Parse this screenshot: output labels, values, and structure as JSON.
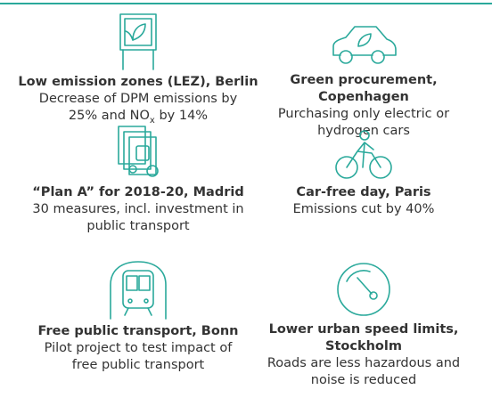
{
  "items": [
    {
      "title": "Low emission zones (LEZ), Berlin",
      "description": [
        {
          "text": "Decrease of DPM emissions by 25%  and NO"
        },
        {
          "text": "x",
          "subscript": true
        },
        {
          "text": " by 14%"
        }
      ]
    },
    {
      "title": "Green procurement, Copenhagen",
      "description": [
        {
          "text": "Purchasing only electric or hydrogen cars"
        }
      ]
    },
    {
      "title": "“Plan A” for 2018-20, Madrid",
      "description": [
        {
          "text": "30 measures, incl. investment in public transport"
        }
      ]
    },
    {
      "title": "Car-free day, Paris",
      "description": [
        {
          "text": "Emissions cut by 40%"
        }
      ]
    },
    {
      "title": "Free public transport, Bonn",
      "description": [
        {
          "text": "Pilot project to test impact of free public transport"
        }
      ]
    },
    {
      "title": "Lower urban speed limits, Stockholm",
      "description": [
        {
          "text": "Roads are less hazardous and noise is reduced"
        }
      ]
    }
  ]
}
